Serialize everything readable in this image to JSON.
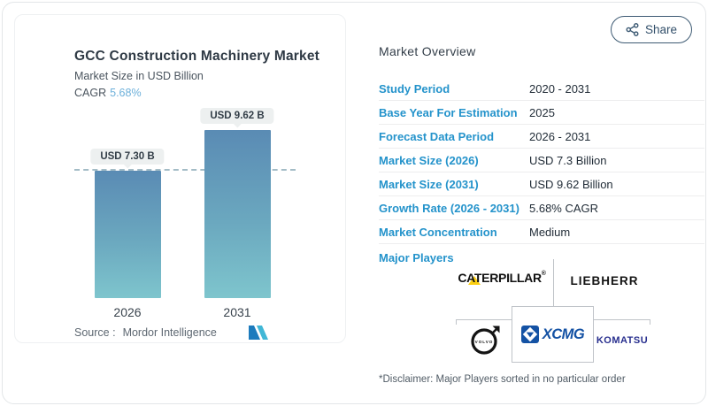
{
  "chart_panel": {
    "title": "GCC Construction Machinery Market",
    "subtitle": "Market Size in USD Billion",
    "cagr_label": "CAGR",
    "cagr_value": "5.68%",
    "source_label": "Source :",
    "source_value": "Mordor Intelligence"
  },
  "chart_data": {
    "type": "bar",
    "title": "GCC Construction Machinery Market",
    "ylabel": "Market Size in USD Billion",
    "categories": [
      "2026",
      "2031"
    ],
    "values": [
      7.3,
      9.62
    ],
    "value_labels": [
      "USD 7.30 B",
      "USD 9.62 B"
    ],
    "cagr_pct": 5.68,
    "dashed_reference_value": 7.3,
    "ylim": [
      0,
      9.62
    ],
    "grid": false,
    "bar_gradient_top": "#5a8bb4",
    "bar_gradient_bottom": "#7ec5cd"
  },
  "share": {
    "label": "Share"
  },
  "overview": {
    "heading": "Market Overview",
    "rows": [
      {
        "label": "Study Period",
        "value": "2020 - 2031"
      },
      {
        "label": "Base Year For Estimation",
        "value": "2025"
      },
      {
        "label": "Forecast Data Period",
        "value": "2026 - 2031"
      },
      {
        "label": "Market Size (2026)",
        "value": "USD 7.3 Billion"
      },
      {
        "label": "Market Size (2031)",
        "value": "USD 9.62 Billion"
      },
      {
        "label": "Growth Rate (2026 - 2031)",
        "value": "5.68% CAGR"
      },
      {
        "label": "Market Concentration",
        "value": "Medium"
      }
    ],
    "major_players_label": "Major Players",
    "players": {
      "caterpillar": "CATERPILLAR",
      "caterpillar_reg": "®",
      "liebherr": "LIEBHERR",
      "volvo": "VOLVO",
      "xcmg": "XCMG",
      "komatsu": "KOMATSU"
    },
    "disclaimer": "*Disclaimer: Major Players sorted in no particular order"
  },
  "colors": {
    "label_blue": "#2493cb",
    "value_dark": "#222d38",
    "share_navy": "#33506b",
    "cat_yellow": "#fccf12",
    "xcmg_blue": "#1452a4",
    "komatsu_navy": "#272e8e",
    "mordor_dark_blue": "#1c7bbd",
    "mordor_teal": "#41b7d6"
  }
}
